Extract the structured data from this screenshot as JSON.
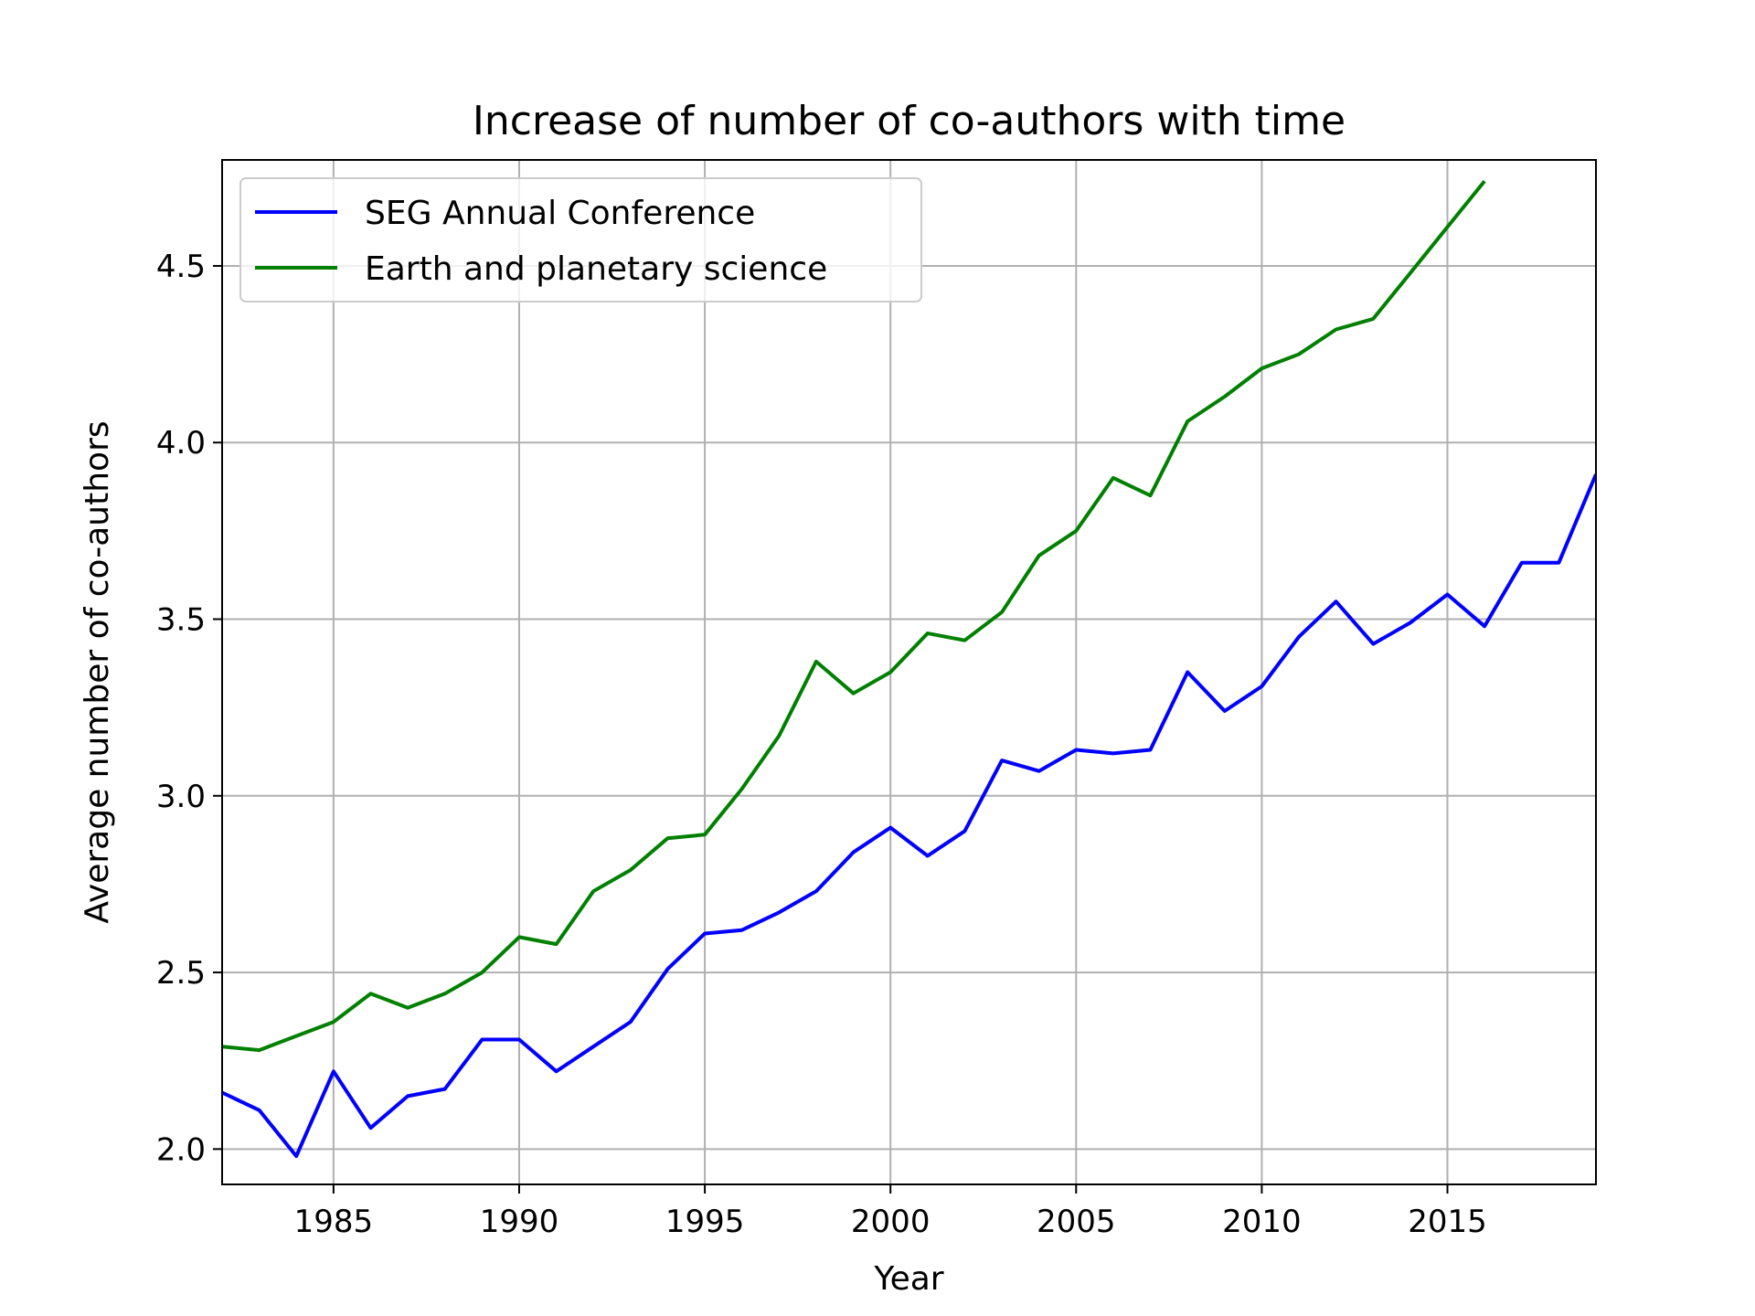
{
  "chart_data": {
    "type": "line",
    "title": "Increase of number of co-authors with time",
    "xlabel": "Year",
    "ylabel": "Average number of co-authors",
    "xlim": [
      1982,
      2019
    ],
    "ylim": [
      1.9,
      4.8
    ],
    "xticks": [
      1985,
      1990,
      1995,
      2000,
      2005,
      2010,
      2015
    ],
    "yticks": [
      2.0,
      2.5,
      3.0,
      3.5,
      4.0,
      4.5
    ],
    "ytick_labels": [
      "2.0",
      "2.5",
      "3.0",
      "3.5",
      "4.0",
      "4.5"
    ],
    "grid": true,
    "legend_position": "upper-left",
    "series": [
      {
        "name": "SEG Annual Conference",
        "color": "#0000ff",
        "x": [
          1982,
          1983,
          1984,
          1985,
          1986,
          1987,
          1988,
          1989,
          1990,
          1991,
          1992,
          1993,
          1994,
          1995,
          1996,
          1997,
          1998,
          1999,
          2000,
          2001,
          2002,
          2003,
          2004,
          2005,
          2006,
          2007,
          2008,
          2009,
          2010,
          2011,
          2012,
          2013,
          2014,
          2015,
          2016,
          2017,
          2018,
          2019
        ],
        "values": [
          2.16,
          2.11,
          1.98,
          2.22,
          2.06,
          2.15,
          2.17,
          2.31,
          2.31,
          2.22,
          2.29,
          2.36,
          2.51,
          2.61,
          2.62,
          2.67,
          2.73,
          2.84,
          2.91,
          2.83,
          2.9,
          3.1,
          3.07,
          3.13,
          3.12,
          3.13,
          3.35,
          3.24,
          3.31,
          3.45,
          3.55,
          3.43,
          3.49,
          3.57,
          3.48,
          3.66,
          3.66,
          3.91
        ]
      },
      {
        "name": "Earth and planetary science",
        "color": "#008000",
        "x": [
          1982,
          1983,
          1984,
          1985,
          1986,
          1987,
          1988,
          1989,
          1990,
          1991,
          1992,
          1993,
          1994,
          1995,
          1996,
          1997,
          1998,
          1999,
          2000,
          2001,
          2002,
          2003,
          2004,
          2005,
          2006,
          2007,
          2008,
          2009,
          2010,
          2011,
          2012,
          2013,
          2014,
          2015,
          2016
        ],
        "values": [
          2.29,
          2.28,
          2.32,
          2.36,
          2.44,
          2.4,
          2.44,
          2.5,
          2.6,
          2.58,
          2.73,
          2.79,
          2.88,
          2.89,
          3.02,
          3.17,
          3.38,
          3.29,
          3.35,
          3.46,
          3.44,
          3.52,
          3.68,
          3.75,
          3.9,
          3.85,
          4.06,
          4.13,
          4.21,
          4.25,
          4.32,
          4.35,
          4.48,
          4.61,
          4.74
        ]
      }
    ]
  }
}
